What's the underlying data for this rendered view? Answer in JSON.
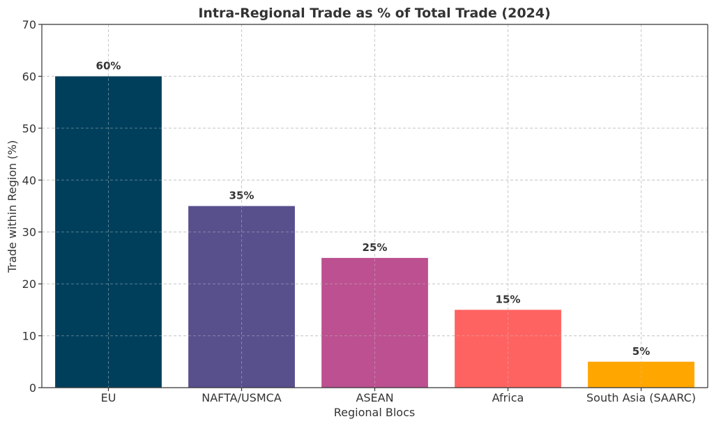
{
  "chart_data": {
    "type": "bar",
    "title": "Intra-Regional Trade as % of Total Trade (2024)",
    "xlabel": "Regional Blocs",
    "ylabel": "Trade within Region (%)",
    "categories": [
      "EU",
      "NAFTA/USMCA",
      "ASEAN",
      "Africa",
      "South Asia (SAARC)"
    ],
    "values": [
      60,
      35,
      25,
      15,
      5
    ],
    "data_labels": [
      "60%",
      "35%",
      "25%",
      "15%",
      "5%"
    ],
    "colors": [
      "#003f5c",
      "#58508d",
      "#bc5090",
      "#ff6361",
      "#ffa600"
    ],
    "ylim": [
      0,
      70
    ],
    "yticks": [
      0,
      10,
      20,
      30,
      40,
      50,
      60,
      70
    ],
    "grid": true,
    "legend": "none"
  }
}
